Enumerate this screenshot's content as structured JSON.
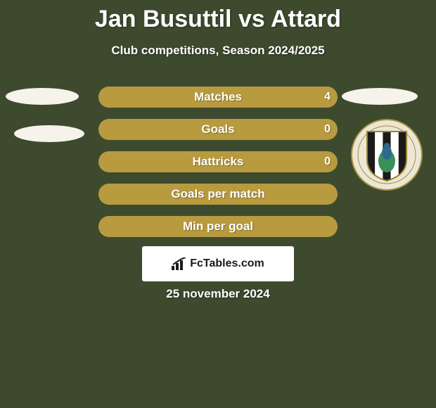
{
  "title": "Jan Busuttil vs Attard",
  "subtitle": "Club competitions, Season 2024/2025",
  "date_text": "25 november 2024",
  "attribution": "FcTables.com",
  "colors": {
    "background": "#3d4a2e",
    "bar_track": "#48582f",
    "bar_left": "#b89a3f",
    "bar_right": "#b89a3f",
    "bar_full": "#b89a3f",
    "ellipse": "#f5f3ea",
    "crest_bg": "#eae7d6",
    "crest_border": "#a98f3c",
    "attribution_bg": "#ffffff",
    "text": "#ffffff"
  },
  "stats": [
    {
      "label": "Matches",
      "left_val": "",
      "right_val": "4",
      "left_pct": 50,
      "right_pct": 50,
      "mode": "split"
    },
    {
      "label": "Goals",
      "left_val": "",
      "right_val": "0",
      "left_pct": 50,
      "right_pct": 50,
      "mode": "split"
    },
    {
      "label": "Hattricks",
      "left_val": "",
      "right_val": "0",
      "left_pct": 50,
      "right_pct": 50,
      "mode": "split"
    },
    {
      "label": "Goals per match",
      "left_val": "",
      "right_val": "",
      "left_pct": 100,
      "right_pct": 0,
      "mode": "full"
    },
    {
      "label": "Min per goal",
      "left_val": "",
      "right_val": "",
      "left_pct": 100,
      "right_pct": 0,
      "mode": "full"
    }
  ],
  "crest": {
    "stripes": [
      "#1a1a1a",
      "#ffffff",
      "#1a1a1a",
      "#ffffff",
      "#1a1a1a"
    ],
    "peacock_body": "#2d6a8e",
    "peacock_tail": "#3a8f5a"
  }
}
